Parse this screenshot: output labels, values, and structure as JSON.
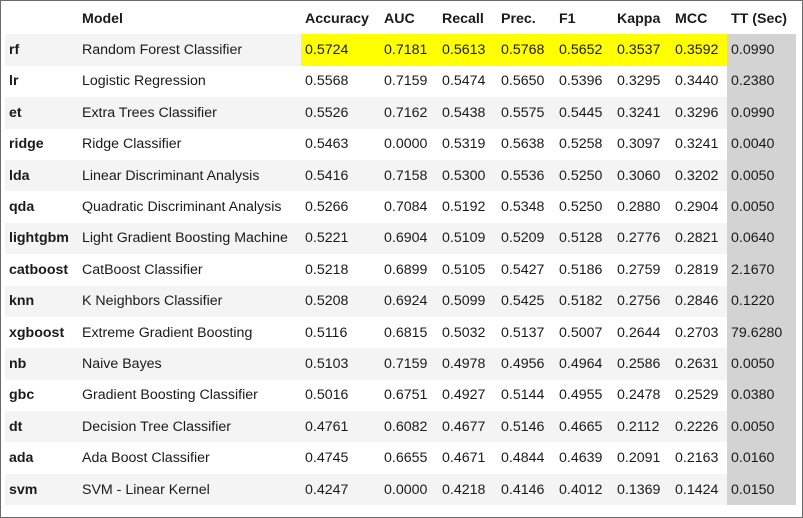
{
  "headers": [
    "",
    "Model",
    "Accuracy",
    "AUC",
    "Recall",
    "Prec.",
    "F1",
    "Kappa",
    "MCC",
    "TT (Sec)"
  ],
  "rows": [
    [
      "rf",
      "Random Forest Classifier",
      "0.5724",
      "0.7181",
      "0.5613",
      "0.5768",
      "0.5652",
      "0.3537",
      "0.3592",
      "0.0990"
    ],
    [
      "lr",
      "Logistic Regression",
      "0.5568",
      "0.7159",
      "0.5474",
      "0.5650",
      "0.5396",
      "0.3295",
      "0.3440",
      "0.2380"
    ],
    [
      "et",
      "Extra Trees Classifier",
      "0.5526",
      "0.7162",
      "0.5438",
      "0.5575",
      "0.5445",
      "0.3241",
      "0.3296",
      "0.0990"
    ],
    [
      "ridge",
      "Ridge Classifier",
      "0.5463",
      "0.0000",
      "0.5319",
      "0.5638",
      "0.5258",
      "0.3097",
      "0.3241",
      "0.0040"
    ],
    [
      "lda",
      "Linear Discriminant Analysis",
      "0.5416",
      "0.7158",
      "0.5300",
      "0.5536",
      "0.5250",
      "0.3060",
      "0.3202",
      "0.0050"
    ],
    [
      "qda",
      "Quadratic Discriminant Analysis",
      "0.5266",
      "0.7084",
      "0.5192",
      "0.5348",
      "0.5250",
      "0.2880",
      "0.2904",
      "0.0050"
    ],
    [
      "lightgbm",
      "Light Gradient Boosting Machine",
      "0.5221",
      "0.6904",
      "0.5109",
      "0.5209",
      "0.5128",
      "0.2776",
      "0.2821",
      "0.0640"
    ],
    [
      "catboost",
      "CatBoost Classifier",
      "0.5218",
      "0.6899",
      "0.5105",
      "0.5427",
      "0.5186",
      "0.2759",
      "0.2819",
      "2.1670"
    ],
    [
      "knn",
      "K Neighbors Classifier",
      "0.5208",
      "0.6924",
      "0.5099",
      "0.5425",
      "0.5182",
      "0.2756",
      "0.2846",
      "0.1220"
    ],
    [
      "xgboost",
      "Extreme Gradient Boosting",
      "0.5116",
      "0.6815",
      "0.5032",
      "0.5137",
      "0.5007",
      "0.2644",
      "0.2703",
      "79.6280"
    ],
    [
      "nb",
      "Naive Bayes",
      "0.5103",
      "0.7159",
      "0.4978",
      "0.4956",
      "0.4964",
      "0.2586",
      "0.2631",
      "0.0050"
    ],
    [
      "gbc",
      "Gradient Boosting Classifier",
      "0.5016",
      "0.6751",
      "0.4927",
      "0.5144",
      "0.4955",
      "0.2478",
      "0.2529",
      "0.0380"
    ],
    [
      "dt",
      "Decision Tree Classifier",
      "0.4761",
      "0.6082",
      "0.4677",
      "0.5146",
      "0.4665",
      "0.2112",
      "0.2226",
      "0.0050"
    ],
    [
      "ada",
      "Ada Boost Classifier",
      "0.4745",
      "0.6655",
      "0.4671",
      "0.4844",
      "0.4639",
      "0.2091",
      "0.2163",
      "0.0160"
    ],
    [
      "svm",
      "SVM - Linear Kernel",
      "0.4247",
      "0.0000",
      "0.4218",
      "0.4146",
      "0.4012",
      "0.1369",
      "0.1424",
      "0.0150"
    ]
  ],
  "highlight": {
    "best_row_index": 0,
    "best_row_color": "#ffff00",
    "highlighted_columns": [
      2,
      3,
      4,
      5,
      6,
      7,
      8
    ],
    "tt_column_color": "#d3d3d3",
    "tt_column_index": 9
  }
}
